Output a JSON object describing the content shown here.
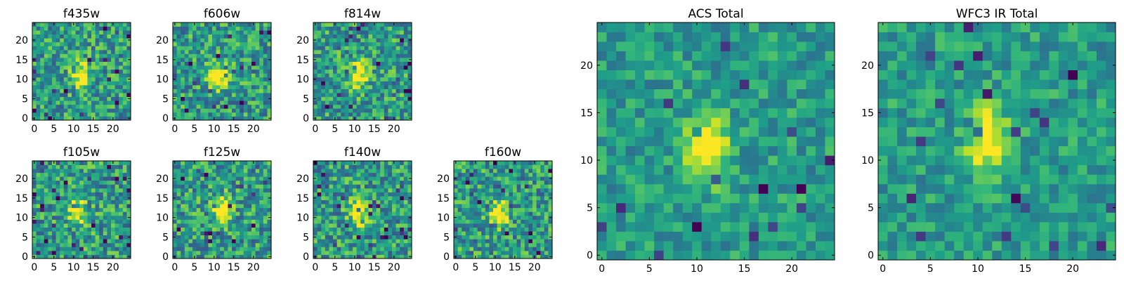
{
  "chart_data": [
    {
      "type": "heatmap",
      "title": "f435w",
      "x_ticks": [
        "0",
        "5",
        "10",
        "15",
        "20"
      ],
      "y_ticks": [
        "0",
        "5",
        "10",
        "15",
        "20"
      ],
      "xlim": [
        -0.5,
        24.5
      ],
      "ylim": [
        -0.5,
        24.5
      ],
      "grid_size": 25,
      "peak": {
        "x": 12,
        "y": 11
      },
      "colormap": "viridis"
    },
    {
      "type": "heatmap",
      "title": "f606w",
      "x_ticks": [
        "0",
        "5",
        "10",
        "15",
        "20"
      ],
      "y_ticks": [
        "0",
        "5",
        "10",
        "15",
        "20"
      ],
      "xlim": [
        -0.5,
        24.5
      ],
      "ylim": [
        -0.5,
        24.5
      ],
      "grid_size": 25,
      "peak": {
        "x": 11,
        "y": 11
      },
      "colormap": "viridis"
    },
    {
      "type": "heatmap",
      "title": "f814w",
      "x_ticks": [
        "0",
        "5",
        "10",
        "15",
        "20"
      ],
      "y_ticks": [
        "0",
        "5",
        "10",
        "15",
        "20"
      ],
      "xlim": [
        -0.5,
        24.5
      ],
      "ylim": [
        -0.5,
        24.5
      ],
      "grid_size": 25,
      "peak": {
        "x": 11,
        "y": 11
      },
      "colormap": "viridis"
    },
    {
      "type": "heatmap",
      "title": "ACS Total",
      "x_ticks": [
        "0",
        "5",
        "10",
        "15",
        "20"
      ],
      "y_ticks": [
        "0",
        "5",
        "10",
        "15",
        "20"
      ],
      "xlim": [
        -0.5,
        24.5
      ],
      "ylim": [
        -0.5,
        24.5
      ],
      "grid_size": 25,
      "peak": {
        "x": 11,
        "y": 11
      },
      "colormap": "viridis"
    },
    {
      "type": "heatmap",
      "title": "WFC3 IR Total",
      "x_ticks": [
        "0",
        "5",
        "10",
        "15",
        "20"
      ],
      "y_ticks": [
        "0",
        "5",
        "10",
        "15",
        "20"
      ],
      "xlim": [
        -0.5,
        24.5
      ],
      "ylim": [
        -0.5,
        24.5
      ],
      "grid_size": 25,
      "peak": {
        "x": 11,
        "y": 12
      },
      "colormap": "viridis"
    },
    {
      "type": "heatmap",
      "title": "f105w",
      "x_ticks": [
        "0",
        "5",
        "10",
        "15",
        "20"
      ],
      "y_ticks": [
        "0",
        "5",
        "10",
        "15",
        "20"
      ],
      "xlim": [
        -0.5,
        24.5
      ],
      "ylim": [
        -0.5,
        24.5
      ],
      "grid_size": 25,
      "peak": {
        "x": 11,
        "y": 12
      },
      "colormap": "viridis"
    },
    {
      "type": "heatmap",
      "title": "f125w",
      "x_ticks": [
        "0",
        "5",
        "10",
        "15",
        "20"
      ],
      "y_ticks": [
        "0",
        "5",
        "10",
        "15",
        "20"
      ],
      "xlim": [
        -0.5,
        24.5
      ],
      "ylim": [
        -0.5,
        24.5
      ],
      "grid_size": 25,
      "peak": {
        "x": 12,
        "y": 12
      },
      "colormap": "viridis"
    },
    {
      "type": "heatmap",
      "title": "f140w",
      "x_ticks": [
        "0",
        "5",
        "10",
        "15",
        "20"
      ],
      "y_ticks": [
        "0",
        "5",
        "10",
        "15",
        "20"
      ],
      "xlim": [
        -0.5,
        24.5
      ],
      "ylim": [
        -0.5,
        24.5
      ],
      "grid_size": 25,
      "peak": {
        "x": 11,
        "y": 11
      },
      "colormap": "viridis"
    },
    {
      "type": "heatmap",
      "title": "f160w",
      "x_ticks": [
        "0",
        "5",
        "10",
        "15",
        "20"
      ],
      "y_ticks": [
        "0",
        "5",
        "10",
        "15",
        "20"
      ],
      "xlim": [
        -0.5,
        24.5
      ],
      "ylim": [
        -0.5,
        24.5
      ],
      "grid_size": 25,
      "peak": {
        "x": 11,
        "y": 11
      },
      "colormap": "viridis"
    }
  ]
}
